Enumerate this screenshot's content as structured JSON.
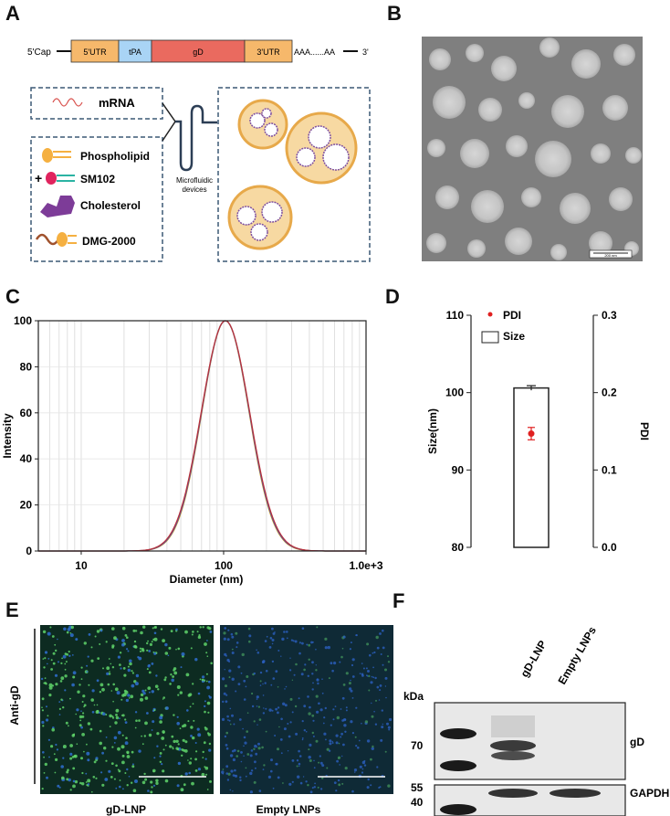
{
  "panels": {
    "a": "A",
    "b": "B",
    "c": "C",
    "d": "D",
    "e": "E",
    "f": "F"
  },
  "panel_a": {
    "cap": "5'Cap",
    "segments": [
      "5'UTR",
      "tPA",
      "gD",
      "3'UTR"
    ],
    "polyA": "AAA......AA",
    "three_prime": "3'",
    "mrna_label": "mRNA",
    "lipids": [
      "Phospholipid",
      "SM102",
      "Cholesterol",
      "DMG-2000"
    ],
    "plus": "+",
    "device_label_1": "Microfluidic",
    "device_label_2": "devices",
    "colors": {
      "utr": "#f6b86b",
      "tpa": "#a9d4f5",
      "gd": "#ea6a5f",
      "box_border": "#3b5875",
      "phospholipid": "#f5b041",
      "sm102": "#e0245e",
      "sm102_tail": "#2bb3a3",
      "cholesterol": "#7d3c98",
      "dmg": "#a0522d"
    }
  },
  "panel_b": {
    "scale_text": "200 nm"
  },
  "chart_data": [
    {
      "type": "line",
      "panel": "C",
      "xlabel": "Diameter (nm)",
      "ylabel": "Intensity",
      "x_scale": "log",
      "xlim": [
        5,
        1000
      ],
      "ylim": [
        0,
        100
      ],
      "x_ticks": [
        "10",
        "100",
        "1.0e+3"
      ],
      "y_ticks": [
        "0",
        "20",
        "40",
        "60",
        "80",
        "100"
      ],
      "grid": true,
      "peak_x": 103,
      "series": [
        {
          "color": "#d4a017",
          "x": [
            25,
            40,
            60,
            80,
            103,
            130,
            170,
            230,
            320
          ],
          "values": [
            0,
            6,
            38,
            78,
            100,
            85,
            46,
            11,
            0
          ]
        },
        {
          "color": "#3a4fc9",
          "x": [
            26,
            40,
            60,
            80,
            103,
            130,
            170,
            230,
            320
          ],
          "values": [
            0,
            5,
            36,
            77,
            100,
            86,
            48,
            12,
            0
          ]
        },
        {
          "color": "#b8333a",
          "x": [
            25,
            40,
            60,
            80,
            103,
            130,
            170,
            230,
            320
          ],
          "values": [
            0,
            6,
            37,
            78,
            100,
            85,
            47,
            11,
            0
          ]
        }
      ]
    },
    {
      "type": "bar",
      "panel": "D",
      "ylabel": "Size(nm)",
      "ylabel_right": "PDI",
      "ylim": [
        80,
        110
      ],
      "ylim_right": [
        0.0,
        0.3
      ],
      "y_ticks": [
        "80",
        "90",
        "100",
        "110"
      ],
      "y_ticks_right": [
        "0.0",
        "0.1",
        "0.2",
        "0.3"
      ],
      "legend": [
        "PDI",
        "Size"
      ],
      "size_value": 100.6,
      "size_error": 0.3,
      "pdi_value": 0.147,
      "pdi_error": 0.008,
      "pdi_color": "#e02020"
    }
  ],
  "panel_e": {
    "row_label": "Anti-gD",
    "captions": [
      "gD-LNP",
      "Empty LNPs"
    ]
  },
  "panel_f": {
    "lanes": [
      "gD-LNP",
      "Empty LNPs"
    ],
    "kda": "kDa",
    "markers": [
      "70",
      "55",
      "40"
    ],
    "labels": [
      "gD",
      "GAPDH"
    ]
  }
}
